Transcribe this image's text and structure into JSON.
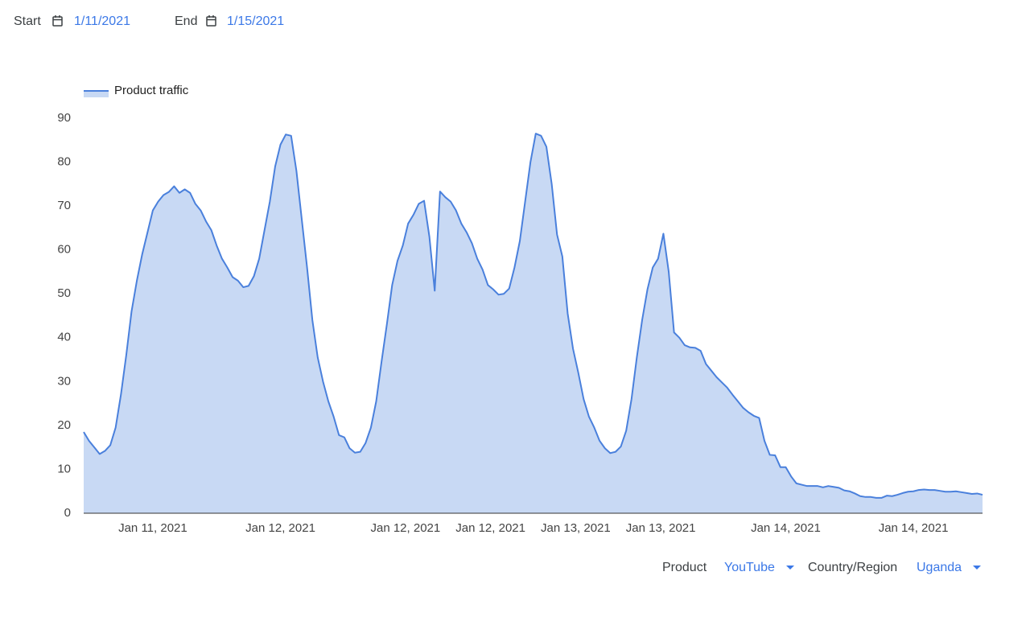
{
  "header": {
    "start_label": "Start",
    "start_date": "1/11/2021",
    "end_label": "End",
    "end_date": "1/15/2021"
  },
  "chart_data": {
    "type": "area",
    "legend": "top-left",
    "series": [
      {
        "name": "Product traffic",
        "color": "#4a80dc",
        "values": [
          18.5,
          16.5,
          15,
          13.5,
          14.2,
          15.5,
          19.5,
          27,
          36,
          46,
          53,
          59,
          64,
          69,
          71,
          72.5,
          73.2,
          74.5,
          73,
          73.8,
          73,
          70.5,
          69,
          66.5,
          64.5,
          61,
          58,
          56,
          53.8,
          53,
          51.5,
          51.8,
          54,
          58,
          64.5,
          71,
          79,
          84,
          86.3,
          86,
          78,
          67,
          56,
          44,
          35.5,
          30,
          25.5,
          22,
          17.8,
          17.3,
          14.8,
          13.8,
          14,
          16,
          19.5,
          25.5,
          34.5,
          43,
          52,
          57.5,
          61,
          66,
          68,
          70.5,
          71.2,
          63,
          50.7,
          73.3,
          72,
          71,
          69,
          66,
          64,
          61.5,
          58,
          55.5,
          52,
          51,
          49.8,
          50,
          51.2,
          56,
          62,
          71,
          80,
          86.5,
          86,
          83.5,
          75,
          63.5,
          58.5,
          45.5,
          37.5,
          32,
          26,
          22,
          19.5,
          16.5,
          14.8,
          13.7,
          14,
          15.2,
          18.8,
          26,
          35.5,
          44,
          51,
          56,
          58,
          63.7,
          55,
          41.2,
          40,
          38.3,
          37.8,
          37.7,
          37,
          34,
          32.5,
          31,
          29.8,
          28.6,
          27,
          25.5,
          24,
          23,
          22.2,
          21.7,
          16.5,
          13.3,
          13.2,
          10.5,
          10.5,
          8.4,
          6.8,
          6.5,
          6.2,
          6.2,
          6.2,
          5.9,
          6.2,
          6,
          5.8,
          5.2,
          5,
          4.5,
          3.9,
          3.7,
          3.7,
          3.5,
          3.5,
          4,
          3.9,
          4.2,
          4.6,
          4.9,
          5,
          5.3,
          5.4,
          5.3,
          5.3,
          5.1,
          4.9,
          4.9,
          5,
          4.8,
          4.6,
          4.4,
          4.5,
          4.2
        ]
      }
    ],
    "xlim": [
      0,
      169
    ],
    "xticks": [
      {
        "value": 13,
        "label": "Jan 11, 2021"
      },
      {
        "value": 37,
        "label": "Jan 12, 2021"
      },
      {
        "value": 60.5,
        "label": "Jan 12, 2021"
      },
      {
        "value": 76.5,
        "label": "Jan 12, 2021"
      },
      {
        "value": 92.5,
        "label": "Jan 13, 2021"
      },
      {
        "value": 108.5,
        "label": "Jan 13, 2021"
      },
      {
        "value": 132,
        "label": "Jan 14, 2021"
      },
      {
        "value": 156,
        "label": "Jan 14, 2021"
      }
    ],
    "ylim": [
      0,
      90
    ],
    "yticks": [
      0,
      10,
      20,
      30,
      40,
      50,
      60,
      70,
      80,
      90
    ]
  },
  "filters": {
    "product_label": "Product",
    "product_value": "YouTube",
    "region_label": "Country/Region",
    "region_value": "Uganda"
  }
}
